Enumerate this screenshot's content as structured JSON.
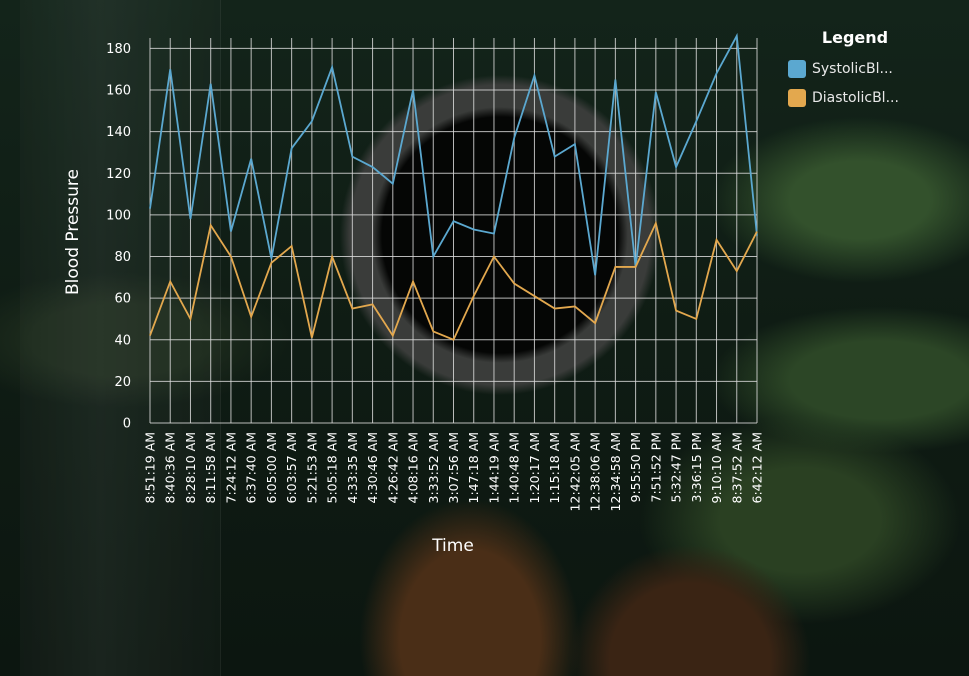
{
  "chart_data": {
    "type": "line",
    "xlabel": "Time",
    "ylabel": "Blood Pressure",
    "ylim": [
      0,
      185
    ],
    "yticks": [
      0,
      20,
      40,
      60,
      80,
      100,
      120,
      140,
      160,
      180
    ],
    "grid": true,
    "legend_position": "top-right",
    "legend_title": "Legend",
    "categories": [
      "8:51:19 AM",
      "8:40:36 AM",
      "8:28:10 AM",
      "8:11:58 AM",
      "7:24:12 AM",
      "6:37:40 AM",
      "6:05:00 AM",
      "6:03:57 AM",
      "5:21:53 AM",
      "5:05:18 AM",
      "4:33:35 AM",
      "4:30:46 AM",
      "4:26:42 AM",
      "4:08:16 AM",
      "3:33:52 AM",
      "3:07:56 AM",
      "1:47:18 AM",
      "1:44:19 AM",
      "1:40:48 AM",
      "1:20:17 AM",
      "1:15:18 AM",
      "12:42:05 AM",
      "12:38:06 AM",
      "12:34:58 AM",
      "9:55:50 PM",
      "7:51:52 PM",
      "5:32:47 PM",
      "3:36:15 PM",
      "9:10:10 AM",
      "8:37:52 AM",
      "6:42:12 AM"
    ],
    "series": [
      {
        "name": "SystolicBl...",
        "color": "#5ba8d0",
        "values": [
          103,
          170,
          98,
          163,
          92,
          127,
          79,
          132,
          145,
          171,
          128,
          123,
          115,
          160,
          80,
          97,
          93,
          91,
          137,
          167,
          128,
          134,
          71,
          165,
          75,
          159,
          123,
          145,
          168,
          186,
          90
        ]
      },
      {
        "name": "DiastolicBl...",
        "color": "#e3a84e",
        "values": [
          42,
          68,
          50,
          95,
          80,
          51,
          77,
          85,
          41,
          80,
          55,
          57,
          42,
          68,
          44,
          40,
          61,
          80,
          67,
          61,
          55,
          56,
          48,
          75,
          75,
          96,
          54,
          50,
          88,
          73,
          92
        ]
      }
    ]
  }
}
